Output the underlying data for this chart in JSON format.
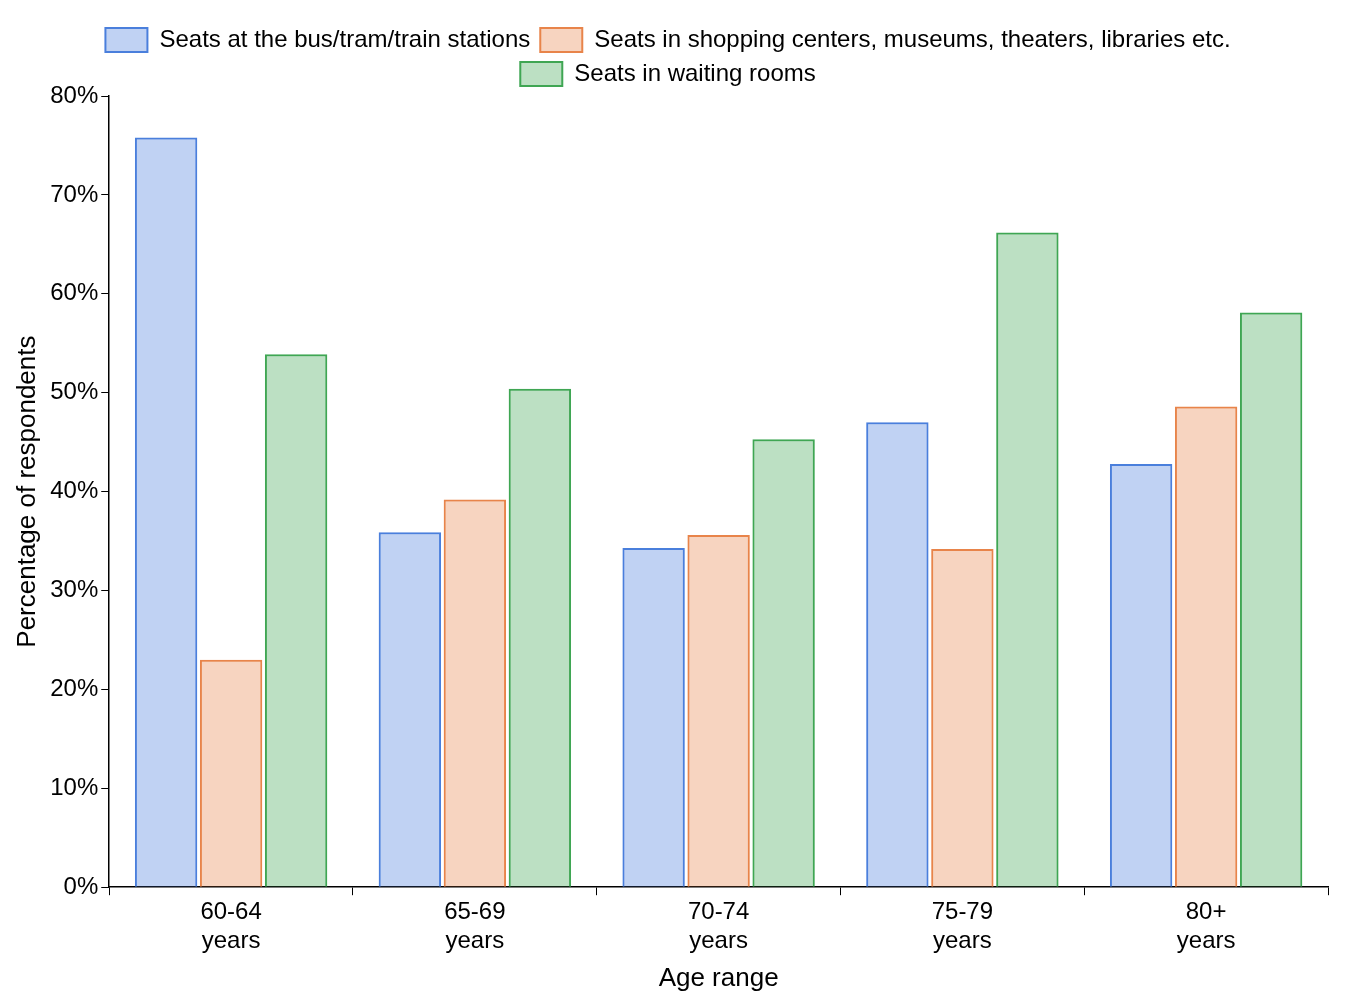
{
  "chart_data": {
    "type": "bar",
    "xlabel": "Age range",
    "ylabel": "Percentage of respondents",
    "categories": [
      "60-64 years",
      "65-69 years",
      "70-74 years",
      "75-79 years",
      "80+ years"
    ],
    "series": [
      {
        "name": "Seats at the bus/tram/train stations",
        "color": "#4a7fdc",
        "values": [
          75.8,
          35.9,
          34.3,
          47.0,
          42.8
        ]
      },
      {
        "name": "Seats in shopping centers, museums, theaters, libraries etc.",
        "color": "#e8844a",
        "values": [
          23.0,
          39.2,
          35.6,
          34.2,
          48.6
        ]
      },
      {
        "name": "Seats in waiting rooms",
        "color": "#3fa653",
        "values": [
          53.9,
          50.4,
          45.3,
          66.2,
          58.1
        ]
      }
    ],
    "ylim": [
      0,
      80
    ],
    "yticks": [
      {
        "value": 0,
        "label": "0%"
      },
      {
        "value": 10,
        "label": "10%"
      },
      {
        "value": 20,
        "label": "20%"
      },
      {
        "value": 30,
        "label": "30%"
      },
      {
        "value": 40,
        "label": "40%"
      },
      {
        "value": 50,
        "label": "50%"
      },
      {
        "value": 60,
        "label": "60%"
      },
      {
        "value": 70,
        "label": "70%"
      },
      {
        "value": 80,
        "label": "80%"
      }
    ],
    "grid": false,
    "legend": "top"
  }
}
